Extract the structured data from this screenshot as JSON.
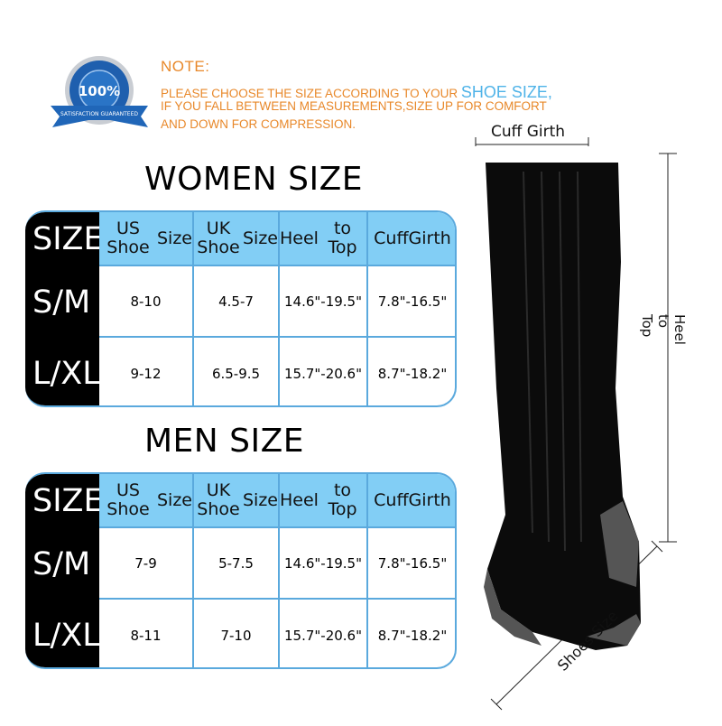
{
  "badge": {
    "center": "100%",
    "ring_text": "SATISFACTION GUARANTEED",
    "ribbon": "SATISFACTION GUARANTEED"
  },
  "note": {
    "title": "NOTE:",
    "line1_pre": "PLEASE CHOOSE THE SIZE ACCORDING TO YOUR ",
    "line1_highlight": "SHOE SIZE,",
    "line2": "IF YOU FALL BETWEEN MEASUREMENTS,SIZE UP FOR COMFORT",
    "line3": "AND DOWN FOR COMPRESSION."
  },
  "colors": {
    "note": "#e8882a",
    "highlight": "#4fb3e8",
    "header": "#82cef5",
    "border": "#5aa9dd",
    "heel": "#555555"
  },
  "headers": {
    "size": "SIZE",
    "us": [
      "US Shoe",
      "Size"
    ],
    "uk": [
      "UK Shoe",
      "Size"
    ],
    "heel": [
      "Heel",
      "to Top"
    ],
    "cuff": [
      "Cuff",
      "Girth"
    ]
  },
  "women": {
    "title": "WOMEN SIZE",
    "rows": [
      {
        "size": "S/M",
        "us": "8-10",
        "uk": "4.5-7",
        "heel": "14.6\"-19.5\"",
        "cuff": "7.8\"-16.5\""
      },
      {
        "size": "L/XL",
        "us": "9-12",
        "uk": "6.5-9.5",
        "heel": "15.7\"-20.6\"",
        "cuff": "8.7\"-18.2\""
      }
    ]
  },
  "men": {
    "title": "MEN SIZE",
    "rows": [
      {
        "size": "S/M",
        "us": "7-9",
        "uk": "5-7.5",
        "heel": "14.6\"-19.5\"",
        "cuff": "7.8\"-16.5\""
      },
      {
        "size": "L/XL",
        "us": "8-11",
        "uk": "7-10",
        "heel": "15.7\"-20.6\"",
        "cuff": "8.7\"-18.2\""
      }
    ]
  },
  "diagram": {
    "cuff": "Cuff Girth",
    "heel_to_top": "Heel to Top",
    "shoes": "Shoes Size"
  }
}
